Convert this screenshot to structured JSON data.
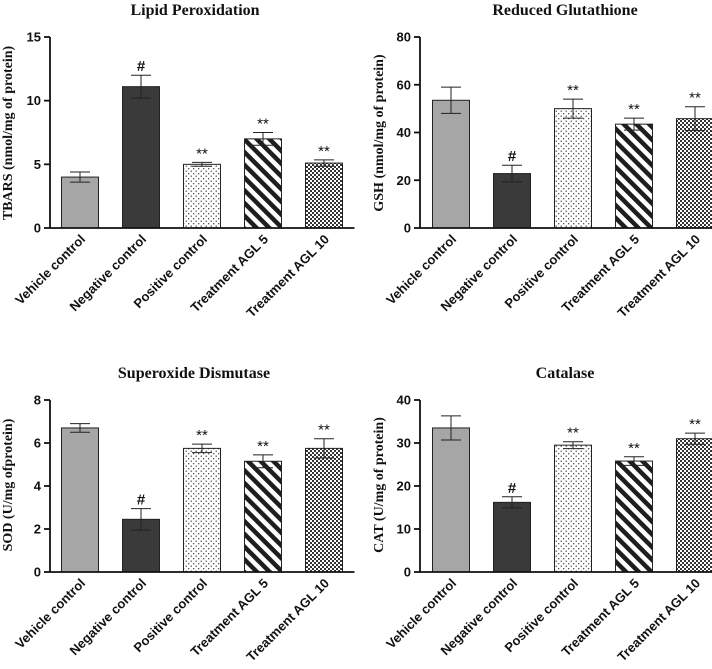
{
  "chart_data": [
    {
      "type": "bar",
      "title": "Lipid Peroxidation",
      "ylabel": "TBARS (nmol/mg of protein)",
      "xlabel": "",
      "ylim": [
        0,
        15
      ],
      "yticks": [
        0,
        5,
        10,
        15
      ],
      "categories": [
        "Vehicle control",
        "Negative control",
        "Positive control",
        "Treatment AGL 5",
        "Treatment AGL 10"
      ],
      "values": [
        4.0,
        11.1,
        5.0,
        7.0,
        5.1
      ],
      "errors": [
        0.4,
        0.9,
        0.15,
        0.5,
        0.25
      ],
      "annotations": [
        "",
        "#",
        "**",
        "**",
        "**"
      ]
    },
    {
      "type": "bar",
      "title": "Reduced Glutathione",
      "ylabel": "GSH (nmol/mg of protein)",
      "xlabel": "",
      "ylim": [
        0,
        80
      ],
      "yticks": [
        0,
        20,
        40,
        60,
        80
      ],
      "categories": [
        "Vehicle control",
        "Negative control",
        "Positive control",
        "Treatment AGL 5",
        "Treatment AGL 10"
      ],
      "values": [
        53.5,
        22.8,
        50.0,
        43.5,
        45.8
      ],
      "errors": [
        5.5,
        3.5,
        4.0,
        2.5,
        5.0
      ],
      "annotations": [
        "",
        "#",
        "**",
        "**",
        "**"
      ]
    },
    {
      "type": "bar",
      "title": "Superoxide Dismutase",
      "ylabel": "SOD (U/mg ofprotein)",
      "xlabel": "",
      "ylim": [
        0,
        8
      ],
      "yticks": [
        0,
        2,
        4,
        6,
        8
      ],
      "categories": [
        "Vehicle control",
        "Negative control",
        "Positive control",
        "Treatment AGL 5",
        "Treatment AGL 10"
      ],
      "values": [
        6.7,
        2.45,
        5.75,
        5.15,
        5.75
      ],
      "errors": [
        0.2,
        0.5,
        0.2,
        0.3,
        0.45
      ],
      "annotations": [
        "",
        "#",
        "**",
        "**",
        "**"
      ]
    },
    {
      "type": "bar",
      "title": "Catalase",
      "ylabel": "CAT (U/mg of protein)",
      "xlabel": "",
      "ylim": [
        0,
        40
      ],
      "yticks": [
        0,
        10,
        20,
        30,
        40
      ],
      "categories": [
        "Vehicle control",
        "Negative control",
        "Positive control",
        "Treatment AGL 5",
        "Treatment AGL 10"
      ],
      "values": [
        33.5,
        16.2,
        29.5,
        25.8,
        31.0
      ],
      "errors": [
        2.8,
        1.3,
        0.8,
        1.0,
        1.3
      ],
      "annotations": [
        "",
        "#",
        "**",
        "**",
        "**"
      ]
    }
  ]
}
